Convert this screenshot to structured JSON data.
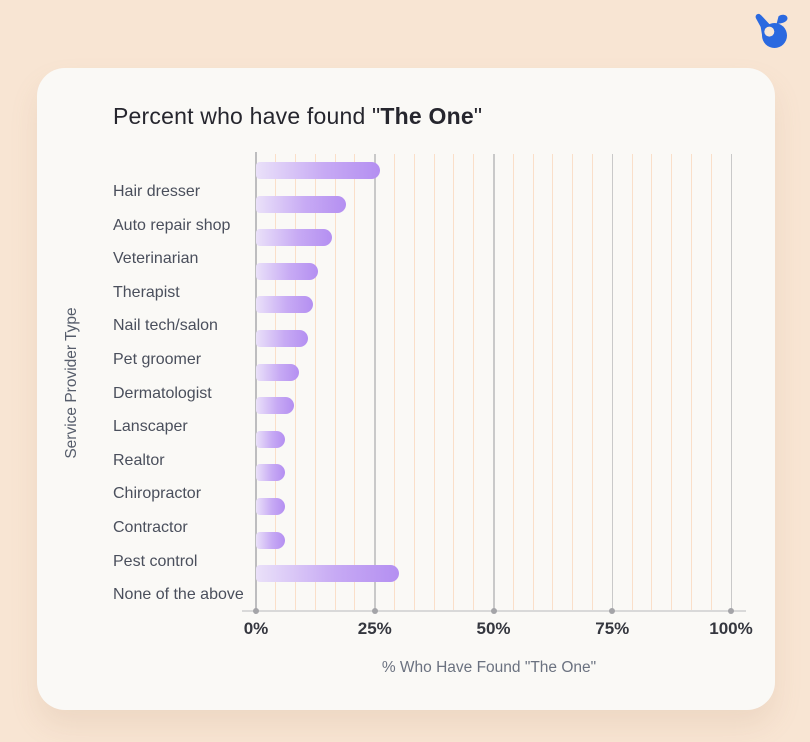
{
  "page": {
    "logo": "birdeye-bird-logo",
    "background_color": "#f8e5d3",
    "card_color": "#faf9f6",
    "logo_color": "#2b69e0"
  },
  "title": {
    "prefix": "Percent who have found \"",
    "bold": "The One",
    "suffix": "\""
  },
  "chart_data": {
    "type": "bar",
    "orientation": "horizontal",
    "title": "Percent who have found \"The One\"",
    "xlabel": "% Who Have Found \"The One\"",
    "ylabel": "Service Provider Type",
    "categories": [
      "Hair dresser",
      "Auto repair shop",
      "Veterinarian",
      "Therapist",
      "Nail tech/salon",
      "Pet groomer",
      "Dermatologist",
      "Lanscaper",
      "Realtor",
      "Chiropractor",
      "Contractor",
      "Pest control",
      "None of the above"
    ],
    "values": [
      26,
      19,
      16,
      13,
      12,
      11,
      9,
      8,
      6,
      6,
      6,
      6,
      30
    ],
    "xticks": [
      "0%",
      "25%",
      "50%",
      "75%",
      "100%"
    ],
    "xtick_values": [
      0,
      25,
      50,
      75,
      100
    ],
    "xlim": [
      0,
      100
    ],
    "grid": {
      "major": "gray vertical at 25% steps",
      "minor": "peach vertical, 6 per 25% step"
    },
    "legend": "none",
    "colors": {
      "bar_gradient_start": "#eae1f9",
      "bar_gradient_end": "#b48ff1",
      "minor_grid": "#fadfc9",
      "major_grid": "#c9c9c9",
      "axis_line": "#d9d9d9",
      "category_label": "#4a4f5c",
      "tick_label": "#35373f",
      "axis_title": "#6b7280",
      "chart_title": "#26262e"
    }
  }
}
